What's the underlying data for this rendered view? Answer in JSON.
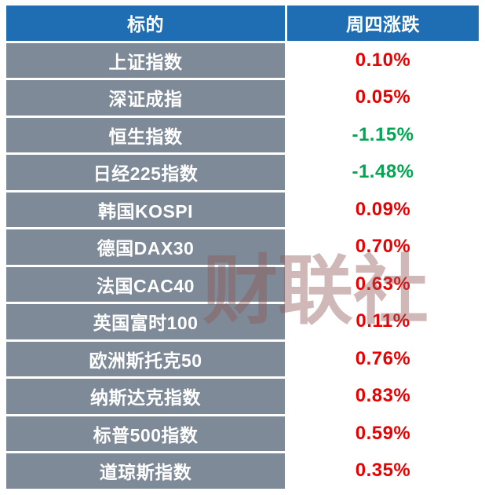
{
  "table": {
    "headers": {
      "target": "标的",
      "change": "周四涨跌"
    },
    "rows": [
      {
        "name": "上证指数",
        "change": "0.10%",
        "direction": "up"
      },
      {
        "name": "深证成指",
        "change": "0.05%",
        "direction": "up"
      },
      {
        "name": "恒生指数",
        "change": "-1.15%",
        "direction": "down"
      },
      {
        "name": "日经225指数",
        "change": "-1.48%",
        "direction": "down"
      },
      {
        "name": "韩国KOSPI",
        "change": "0.09%",
        "direction": "up"
      },
      {
        "name": "德国DAX30",
        "change": "0.70%",
        "direction": "up"
      },
      {
        "name": "法国CAC40",
        "change": "0.63%",
        "direction": "up"
      },
      {
        "name": "英国富时100",
        "change": "0.11%",
        "direction": "up"
      },
      {
        "name": "欧洲斯托克50",
        "change": "0.76%",
        "direction": "up"
      },
      {
        "name": "纳斯达克指数",
        "change": "0.83%",
        "direction": "up"
      },
      {
        "name": "标普500指数",
        "change": "0.59%",
        "direction": "up"
      },
      {
        "name": "道琼斯指数",
        "change": "0.35%",
        "direction": "up"
      }
    ],
    "colors": {
      "header_bg": "#1f6eb4",
      "row_bg": "#7e8a97",
      "up": "#ea0000",
      "down": "#00a650"
    }
  },
  "watermark": "财联社"
}
